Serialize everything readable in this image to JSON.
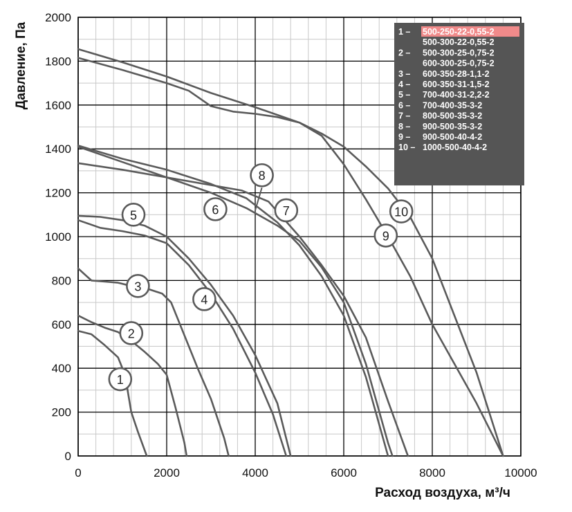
{
  "chart_data": {
    "type": "line",
    "xlabel": "Расход воздуха, м³/ч",
    "ylabel": "Давление, Па",
    "xlim": [
      0,
      10000
    ],
    "ylim": [
      0,
      2000
    ],
    "x_ticks": [
      0,
      2000,
      4000,
      6000,
      8000,
      10000
    ],
    "y_ticks": [
      0,
      200,
      400,
      600,
      800,
      1000,
      1200,
      1400,
      1600,
      1800,
      2000
    ],
    "grid": "major and minor",
    "legend_position": "top-right",
    "colors": {
      "curve": "#5a5a5a",
      "legend_bg": "#555555",
      "legend_highlight": "#f08a8a",
      "grid_major": "#000000",
      "grid_minor": "#c8c8c8"
    },
    "legend": [
      {
        "label": "1",
        "text": [
          "500-250-22-0,55-2",
          "500-300-22-0,55-2"
        ]
      },
      {
        "label": "2",
        "text": [
          "500-300-25-0,75-2",
          "600-300-25-0,75-2"
        ]
      },
      {
        "label": "3",
        "text": [
          "600-350-28-1,1-2"
        ]
      },
      {
        "label": "4",
        "text": [
          "600-350-31-1,5-2"
        ]
      },
      {
        "label": "5",
        "text": [
          "700-400-31-2,2-2"
        ]
      },
      {
        "label": "6",
        "text": [
          "700-400-35-3-2"
        ]
      },
      {
        "label": "7",
        "text": [
          "800-500-35-3-2"
        ]
      },
      {
        "label": "8",
        "text": [
          "900-500-35-3-2"
        ]
      },
      {
        "label": "9",
        "text": [
          "900-500-40-4-2"
        ]
      },
      {
        "label": "10",
        "text": [
          "1000-500-40-4-2"
        ]
      }
    ],
    "series": [
      {
        "label": "1",
        "marker_at": [
          950,
          350
        ],
        "points": [
          [
            0,
            570
          ],
          [
            300,
            555
          ],
          [
            600,
            505
          ],
          [
            900,
            450
          ],
          [
            1000,
            400
          ],
          [
            1100,
            320
          ],
          [
            1200,
            200
          ],
          [
            1350,
            110
          ],
          [
            1550,
            0
          ]
        ]
      },
      {
        "label": "2",
        "marker_at": [
          1200,
          560
        ],
        "points": [
          [
            0,
            640
          ],
          [
            300,
            610
          ],
          [
            600,
            585
          ],
          [
            900,
            565
          ],
          [
            1200,
            525
          ],
          [
            1500,
            475
          ],
          [
            1800,
            420
          ],
          [
            2000,
            370
          ],
          [
            2200,
            220
          ],
          [
            2400,
            60
          ],
          [
            2450,
            0
          ]
        ]
      },
      {
        "label": "3",
        "marker_at": [
          1350,
          775
        ],
        "points": [
          [
            0,
            855
          ],
          [
            300,
            800
          ],
          [
            600,
            795
          ],
          [
            900,
            790
          ],
          [
            1200,
            775
          ],
          [
            1600,
            760
          ],
          [
            1900,
            740
          ],
          [
            2100,
            700
          ],
          [
            2400,
            550
          ],
          [
            2700,
            400
          ],
          [
            3000,
            260
          ],
          [
            3300,
            80
          ],
          [
            3400,
            0
          ]
        ]
      },
      {
        "label": "4",
        "marker_at": [
          2850,
          715
        ],
        "points": [
          [
            0,
            1075
          ],
          [
            500,
            1040
          ],
          [
            1000,
            1025
          ],
          [
            1500,
            1005
          ],
          [
            2000,
            970
          ],
          [
            2500,
            870
          ],
          [
            3000,
            740
          ],
          [
            3500,
            580
          ],
          [
            4000,
            380
          ],
          [
            4400,
            190
          ],
          [
            4700,
            0
          ]
        ]
      },
      {
        "label": "5",
        "marker_at": [
          1250,
          1100
        ],
        "points": [
          [
            0,
            1095
          ],
          [
            500,
            1090
          ],
          [
            1000,
            1075
          ],
          [
            1500,
            1050
          ],
          [
            2000,
            1000
          ],
          [
            2500,
            900
          ],
          [
            3000,
            780
          ],
          [
            3500,
            640
          ],
          [
            4000,
            460
          ],
          [
            4500,
            240
          ],
          [
            4800,
            0
          ]
        ]
      },
      {
        "label": "6",
        "marker_at": [
          3100,
          1125
        ],
        "points": [
          [
            0,
            1415
          ],
          [
            1000,
            1355
          ],
          [
            2000,
            1305
          ],
          [
            3000,
            1240
          ],
          [
            3800,
            1175
          ],
          [
            4500,
            1065
          ],
          [
            5000,
            960
          ],
          [
            5500,
            820
          ],
          [
            6000,
            640
          ],
          [
            6500,
            360
          ],
          [
            7000,
            0
          ]
        ]
      },
      {
        "label": "7",
        "marker_at": [
          4700,
          1120
        ],
        "points": [
          [
            0,
            1335
          ],
          [
            1000,
            1305
          ],
          [
            2000,
            1270
          ],
          [
            3000,
            1235
          ],
          [
            3700,
            1210
          ],
          [
            4300,
            1160
          ],
          [
            5000,
            1000
          ],
          [
            5500,
            870
          ],
          [
            6000,
            730
          ],
          [
            6500,
            540
          ],
          [
            7000,
            250
          ],
          [
            7450,
            0
          ]
        ]
      },
      {
        "label": "8",
        "marker_at": [
          4150,
          1280
        ],
        "points": [
          [
            0,
            1410
          ],
          [
            1000,
            1340
          ],
          [
            2000,
            1270
          ],
          [
            3000,
            1200
          ],
          [
            3800,
            1130
          ],
          [
            4500,
            1050
          ],
          [
            5000,
            980
          ],
          [
            5500,
            860
          ],
          [
            6000,
            700
          ],
          [
            6500,
            420
          ],
          [
            7000,
            60
          ],
          [
            7100,
            0
          ]
        ]
      },
      {
        "label": "9",
        "marker_at": [
          6950,
          1005
        ],
        "points": [
          [
            0,
            1815
          ],
          [
            1000,
            1760
          ],
          [
            2000,
            1700
          ],
          [
            2500,
            1665
          ],
          [
            3000,
            1595
          ],
          [
            3500,
            1570
          ],
          [
            4000,
            1560
          ],
          [
            4500,
            1545
          ],
          [
            5000,
            1520
          ],
          [
            5500,
            1460
          ],
          [
            6000,
            1330
          ],
          [
            6500,
            1170
          ],
          [
            7000,
            1000
          ],
          [
            7500,
            820
          ],
          [
            8000,
            600
          ],
          [
            8500,
            420
          ],
          [
            9000,
            240
          ],
          [
            9600,
            0
          ]
        ]
      },
      {
        "label": "10",
        "marker_at": [
          7300,
          1115
        ],
        "points": [
          [
            0,
            1855
          ],
          [
            1000,
            1795
          ],
          [
            2000,
            1730
          ],
          [
            3000,
            1655
          ],
          [
            4000,
            1590
          ],
          [
            5000,
            1520
          ],
          [
            5500,
            1470
          ],
          [
            6000,
            1410
          ],
          [
            6500,
            1320
          ],
          [
            7000,
            1220
          ],
          [
            7500,
            1090
          ],
          [
            8000,
            900
          ],
          [
            8500,
            640
          ],
          [
            9000,
            380
          ],
          [
            9600,
            0
          ]
        ]
      }
    ]
  }
}
